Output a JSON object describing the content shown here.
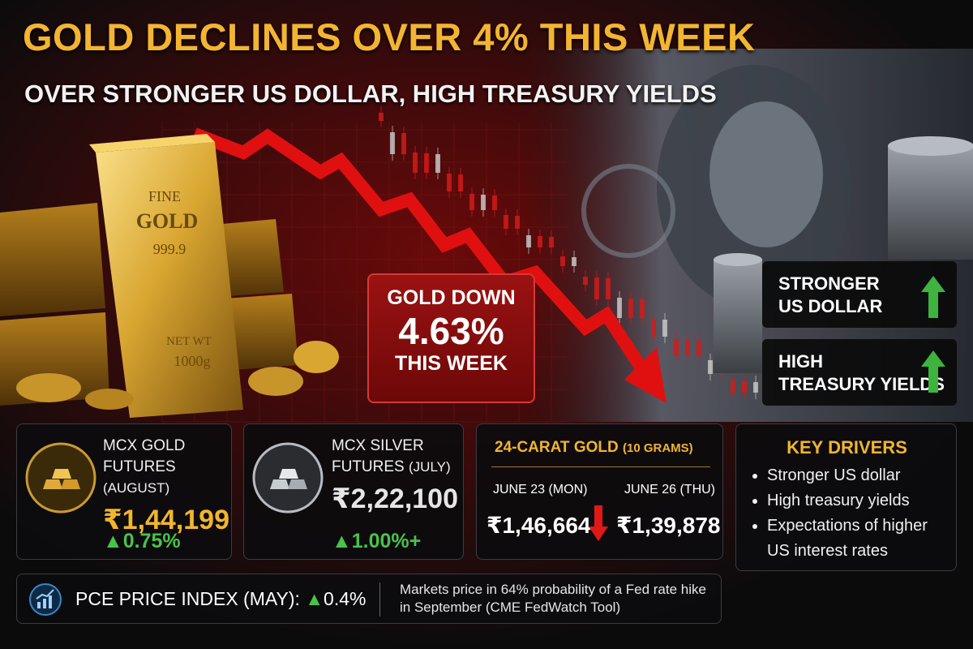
{
  "header": {
    "title": "GOLD DECLINES OVER 4% THIS WEEK",
    "subtitle": "OVER STRONGER US DOLLAR, HIGH TREASURY YIELDS"
  },
  "gold_bar": {
    "lines": [
      "FINE",
      "GOLD",
      "999.9",
      "NET WT",
      "1000g"
    ]
  },
  "callout": {
    "line1": "GOLD DOWN",
    "value": "4.63%",
    "line2": "THIS WEEK"
  },
  "badges": [
    {
      "lines": [
        "STRONGER",
        "US DOLLAR"
      ]
    },
    {
      "lines": [
        "HIGH",
        "TREASURY YIELDS"
      ]
    }
  ],
  "cards": [
    {
      "title": "MCX GOLD",
      "subtitle": "FUTURES",
      "qualifier": "(AUGUST)",
      "price": "₹1,44,199",
      "change": "0.75%"
    },
    {
      "title": "MCX SILVER",
      "subtitle": "FUTURES",
      "qualifier": "(JULY)",
      "price": "₹2,22,100",
      "change": "1.00%+"
    }
  ],
  "carat_card": {
    "title": "24-CARAT GOLD",
    "unit": "(10 GRAMS)",
    "from": {
      "date": "JUNE 23 (MON)",
      "price": "₹1,46,664"
    },
    "to": {
      "date": "JUNE 26 (THU)",
      "price": "₹1,39,878"
    }
  },
  "key_drivers": {
    "title": "KEY DRIVERS",
    "items": [
      "Stronger US dollar",
      "High treasury yields",
      "Expectations of higher US interest rates"
    ]
  },
  "footer": {
    "label": "PCE PRICE INDEX (MAY):",
    "change": "0.4%",
    "note": "Markets price in 64% probability of a Fed rate hike in September (CME FedWatch Tool)"
  }
}
